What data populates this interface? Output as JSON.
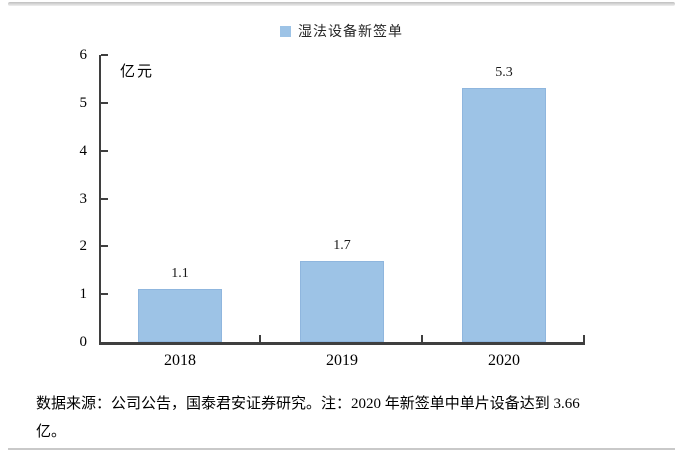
{
  "chart_data": {
    "type": "bar",
    "legend": "湿法设备新签单",
    "unit_label": "亿元",
    "categories": [
      "2018",
      "2019",
      "2020"
    ],
    "values": [
      1.1,
      1.7,
      5.3
    ],
    "value_labels": [
      "1.1",
      "1.7",
      "5.3"
    ],
    "ylim": [
      0,
      6
    ],
    "yticks": [
      0,
      1,
      2,
      3,
      4,
      5,
      6
    ],
    "grid": false,
    "legend_position": "top-center",
    "bar_color": "#9DC3E6"
  },
  "footer": {
    "source_note_lines": [
      "数据来源：公司公告，国泰君安证券研究。注：2020 年新签单中单片设备达到 3.66",
      "亿。"
    ]
  }
}
